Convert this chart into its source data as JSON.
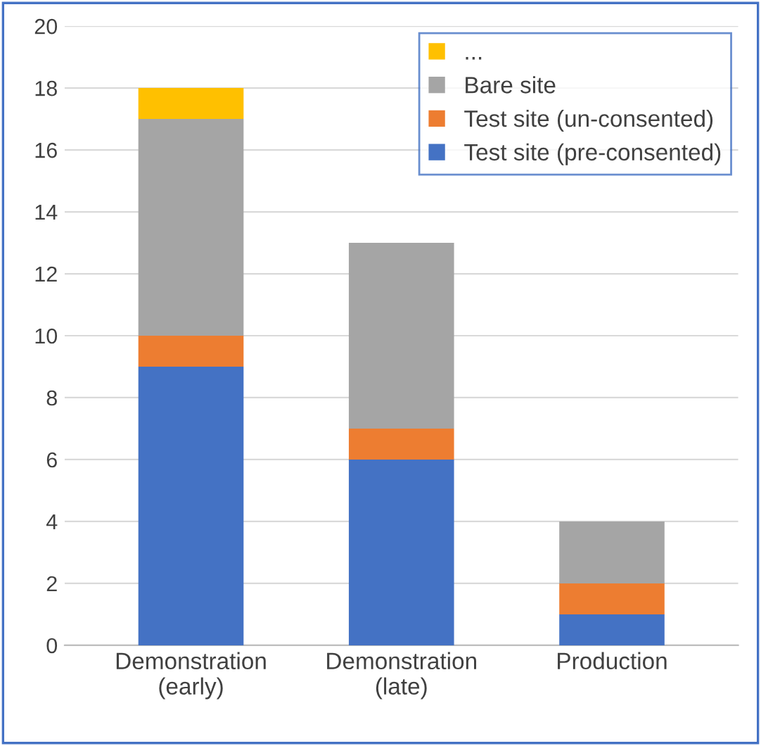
{
  "chart_data": {
    "type": "bar",
    "stacked": true,
    "categories": [
      "Demonstration\n(early)",
      "Demonstration\n(late)",
      "Production"
    ],
    "series": [
      {
        "name": "Test site (pre-consented)",
        "color": "#4472c4",
        "values": [
          9,
          6,
          1
        ]
      },
      {
        "name": "Test site (un-consented)",
        "color": "#ed7d31",
        "values": [
          1,
          1,
          1
        ]
      },
      {
        "name": "Bare site",
        "color": "#a5a5a5",
        "values": [
          7,
          6,
          2
        ]
      },
      {
        "name": "...",
        "color": "#ffc000",
        "values": [
          1,
          0,
          0
        ]
      }
    ],
    "ylim": [
      0,
      20
    ],
    "yticks": [
      0,
      2,
      4,
      6,
      8,
      10,
      12,
      14,
      16,
      18,
      20
    ],
    "grid": "y",
    "legend": "top right"
  }
}
